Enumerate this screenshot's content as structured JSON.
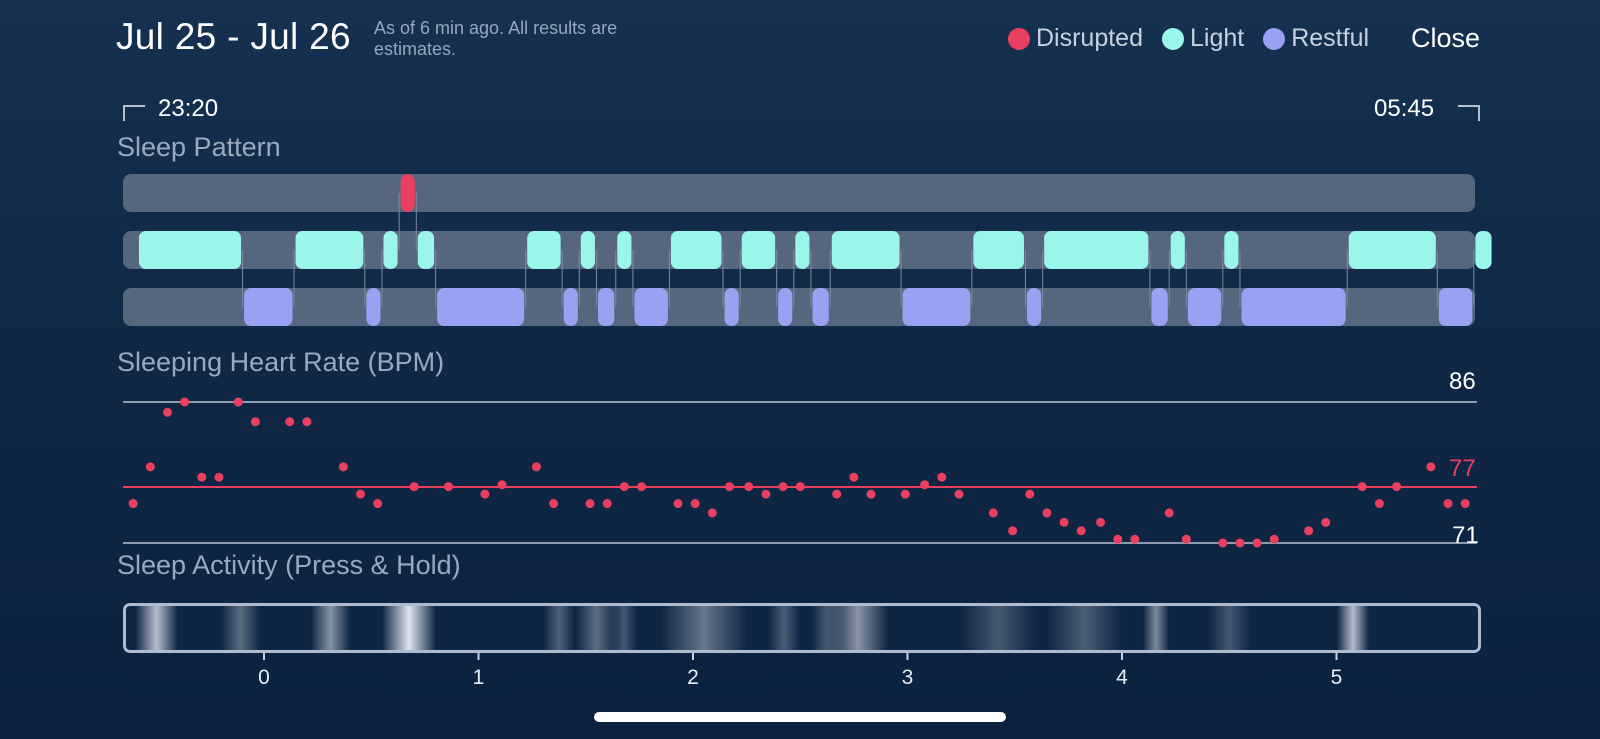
{
  "header": {
    "title": "Jul 25 - Jul 26",
    "as_of": "As of 6 min ago. All results are estimates.",
    "close_label": "Close"
  },
  "legend": [
    {
      "label": "Disrupted",
      "color": "#e9405f"
    },
    {
      "label": "Light",
      "color": "#99f6e8"
    },
    {
      "label": "Restful",
      "color": "#9aa0f2"
    }
  ],
  "time_range": {
    "start": "23:20",
    "end": "05:45"
  },
  "sleep_pattern": {
    "title": "Sleep Pattern",
    "unit": "hours",
    "segments": [
      {
        "stage": "light",
        "start": -0.59,
        "end": -0.1
      },
      {
        "stage": "restful",
        "start": -0.1,
        "end": 0.14
      },
      {
        "stage": "light",
        "start": 0.14,
        "end": 0.47
      },
      {
        "stage": "restful",
        "start": 0.47,
        "end": 0.55
      },
      {
        "stage": "light",
        "start": 0.55,
        "end": 0.63
      },
      {
        "stage": "disrupted",
        "start": 0.63,
        "end": 0.71
      },
      {
        "stage": "light",
        "start": 0.71,
        "end": 0.8
      },
      {
        "stage": "restful",
        "start": 0.8,
        "end": 1.22
      },
      {
        "stage": "light",
        "start": 1.22,
        "end": 1.39
      },
      {
        "stage": "restful",
        "start": 1.39,
        "end": 1.47
      },
      {
        "stage": "light",
        "start": 1.47,
        "end": 1.55
      },
      {
        "stage": "restful",
        "start": 1.55,
        "end": 1.64
      },
      {
        "stage": "light",
        "start": 1.64,
        "end": 1.72
      },
      {
        "stage": "restful",
        "start": 1.72,
        "end": 1.89
      },
      {
        "stage": "light",
        "start": 1.89,
        "end": 2.14
      },
      {
        "stage": "restful",
        "start": 2.14,
        "end": 2.22
      },
      {
        "stage": "light",
        "start": 2.22,
        "end": 2.39
      },
      {
        "stage": "restful",
        "start": 2.39,
        "end": 2.47
      },
      {
        "stage": "light",
        "start": 2.47,
        "end": 2.55
      },
      {
        "stage": "restful",
        "start": 2.55,
        "end": 2.64
      },
      {
        "stage": "light",
        "start": 2.64,
        "end": 2.97
      },
      {
        "stage": "restful",
        "start": 2.97,
        "end": 3.3
      },
      {
        "stage": "light",
        "start": 3.3,
        "end": 3.55
      },
      {
        "stage": "restful",
        "start": 3.55,
        "end": 3.63
      },
      {
        "stage": "light",
        "start": 3.63,
        "end": 4.13
      },
      {
        "stage": "restful",
        "start": 4.13,
        "end": 4.22
      },
      {
        "stage": "light",
        "start": 4.22,
        "end": 4.3
      },
      {
        "stage": "restful",
        "start": 4.3,
        "end": 4.47
      },
      {
        "stage": "light",
        "start": 4.47,
        "end": 4.55
      },
      {
        "stage": "restful",
        "start": 4.55,
        "end": 5.05
      },
      {
        "stage": "light",
        "start": 5.05,
        "end": 5.47
      },
      {
        "stage": "restful",
        "start": 5.47,
        "end": 5.64
      },
      {
        "stage": "light",
        "start": 5.64,
        "end": 5.73
      }
    ]
  },
  "heart_rate": {
    "title": "Sleeping Heart Rate (BPM)",
    "max_label": "86",
    "avg_label": "77",
    "min_label": "71",
    "max": 86,
    "avg": 77,
    "min": 71,
    "points": [
      [
        -0.61,
        75.2
      ],
      [
        -0.53,
        79.1
      ],
      [
        -0.45,
        84.9
      ],
      [
        -0.37,
        86.0
      ],
      [
        -0.29,
        78.0
      ],
      [
        -0.21,
        78.0
      ],
      [
        -0.12,
        86.0
      ],
      [
        -0.04,
        83.9
      ],
      [
        0.12,
        83.9
      ],
      [
        0.2,
        83.9
      ],
      [
        0.37,
        79.1
      ],
      [
        0.45,
        76.2
      ],
      [
        0.53,
        75.2
      ],
      [
        0.7,
        77.0
      ],
      [
        0.86,
        77.0
      ],
      [
        1.03,
        76.2
      ],
      [
        1.11,
        77.2
      ],
      [
        1.27,
        79.1
      ],
      [
        1.35,
        75.2
      ],
      [
        1.52,
        75.2
      ],
      [
        1.6,
        75.2
      ],
      [
        1.68,
        77.0
      ],
      [
        1.76,
        77.0
      ],
      [
        1.93,
        75.2
      ],
      [
        2.01,
        75.2
      ],
      [
        2.09,
        74.2
      ],
      [
        2.17,
        77.0
      ],
      [
        2.26,
        77.0
      ],
      [
        2.34,
        76.2
      ],
      [
        2.42,
        77.0
      ],
      [
        2.5,
        77.0
      ],
      [
        2.67,
        76.2
      ],
      [
        2.75,
        78.0
      ],
      [
        2.83,
        76.2
      ],
      [
        2.99,
        76.2
      ],
      [
        3.08,
        77.2
      ],
      [
        3.16,
        78.0
      ],
      [
        3.24,
        76.2
      ],
      [
        3.4,
        74.2
      ],
      [
        3.49,
        72.3
      ],
      [
        3.57,
        76.2
      ],
      [
        3.65,
        74.2
      ],
      [
        3.73,
        73.2
      ],
      [
        3.81,
        72.3
      ],
      [
        3.9,
        73.2
      ],
      [
        3.98,
        71.4
      ],
      [
        4.06,
        71.4
      ],
      [
        4.22,
        74.2
      ],
      [
        4.3,
        71.4
      ],
      [
        4.47,
        71.0
      ],
      [
        4.55,
        71.0
      ],
      [
        4.63,
        71.0
      ],
      [
        4.71,
        71.4
      ],
      [
        4.87,
        72.3
      ],
      [
        4.95,
        73.2
      ],
      [
        5.12,
        77.0
      ],
      [
        5.2,
        75.2
      ],
      [
        5.28,
        77.0
      ],
      [
        5.44,
        79.1
      ],
      [
        5.52,
        75.2
      ],
      [
        5.6,
        75.2
      ]
    ]
  },
  "activity": {
    "title": "Sleep Activity (Press & Hold)",
    "x_ticks": [
      "0",
      "1",
      "2",
      "3",
      "4",
      "5"
    ],
    "x_tick_values": [
      0,
      1,
      2,
      3,
      4,
      5
    ],
    "x_range": [
      -0.63,
      5.73
    ],
    "bands": [
      {
        "x": -0.6,
        "w": 0.2,
        "level": 0.75
      },
      {
        "x": -0.2,
        "w": 0.18,
        "level": 0.35
      },
      {
        "x": 0.22,
        "w": 0.18,
        "level": 0.55
      },
      {
        "x": 0.55,
        "w": 0.25,
        "level": 0.95
      },
      {
        "x": 1.3,
        "w": 0.15,
        "level": 0.3
      },
      {
        "x": 1.45,
        "w": 0.2,
        "level": 0.35
      },
      {
        "x": 1.62,
        "w": 0.12,
        "level": 0.25
      },
      {
        "x": 1.85,
        "w": 0.4,
        "level": 0.4
      },
      {
        "x": 2.35,
        "w": 0.15,
        "level": 0.28
      },
      {
        "x": 2.55,
        "w": 0.15,
        "level": 0.25
      },
      {
        "x": 2.63,
        "w": 0.28,
        "level": 0.55
      },
      {
        "x": 3.25,
        "w": 0.35,
        "level": 0.25
      },
      {
        "x": 3.65,
        "w": 0.35,
        "level": 0.28
      },
      {
        "x": 4.1,
        "w": 0.12,
        "level": 0.5
      },
      {
        "x": 4.4,
        "w": 0.2,
        "level": 0.25
      },
      {
        "x": 5.0,
        "w": 0.15,
        "level": 0.75
      }
    ]
  }
}
